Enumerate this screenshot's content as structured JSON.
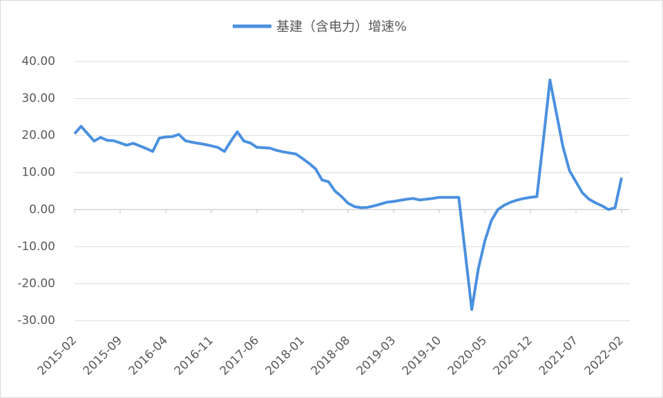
{
  "chart_data": {
    "type": "line",
    "categories": [
      "2015-02",
      null,
      null,
      null,
      null,
      null,
      null,
      "2015-09",
      null,
      null,
      null,
      null,
      null,
      null,
      "2016-04",
      null,
      null,
      null,
      null,
      null,
      null,
      "2016-11",
      null,
      null,
      null,
      null,
      null,
      null,
      "2017-06",
      null,
      null,
      null,
      null,
      null,
      null,
      "2018-01",
      null,
      null,
      null,
      null,
      null,
      null,
      "2018-08",
      null,
      null,
      null,
      null,
      null,
      null,
      "2019-03",
      null,
      null,
      null,
      null,
      null,
      null,
      "2019-10",
      null,
      null,
      null,
      null,
      null,
      null,
      "2020-05",
      null,
      null,
      null,
      null,
      null,
      null,
      "2020-12",
      null,
      null,
      null,
      null,
      null,
      null,
      "2021-07",
      null,
      null,
      null,
      null,
      null,
      null,
      "2022-02"
    ],
    "series": [
      {
        "name": "基建（含电力）增速%",
        "color": "#4a90e0",
        "values": [
          20.5,
          22.5,
          20.5,
          18.5,
          19.5,
          18.7,
          18.6,
          18.0,
          17.4,
          17.9,
          17.2,
          16.5,
          15.7,
          19.3,
          19.6,
          19.7,
          20.3,
          18.6,
          18.2,
          17.9,
          17.6,
          17.2,
          16.8,
          15.7,
          18.5,
          21.0,
          18.5,
          18.0,
          16.8,
          16.7,
          16.6,
          16.0,
          15.6,
          15.3,
          15.0,
          13.8,
          12.5,
          11.0,
          8.0,
          7.5,
          5.0,
          3.5,
          1.7,
          0.8,
          0.5,
          0.6,
          1.0,
          1.5,
          2.0,
          2.2,
          2.5,
          2.8,
          3.0,
          2.6,
          2.8,
          3.0,
          3.3,
          3.3,
          3.3,
          3.3,
          -11.8,
          -27.0,
          -16.0,
          -8.5,
          -3.0,
          0.0,
          1.2,
          2.0,
          2.6,
          3.0,
          3.3,
          3.5,
          19.0,
          35.0,
          26.0,
          17.0,
          10.5,
          7.5,
          4.5,
          2.8,
          1.8,
          1.0,
          0.0,
          0.5,
          8.6
        ]
      }
    ],
    "ylim": [
      -30,
      40
    ],
    "yticks": [
      {
        "value": -30,
        "label": "-30.00"
      },
      {
        "value": -20,
        "label": "-20.00"
      },
      {
        "value": -10,
        "label": "-10.00"
      },
      {
        "value": 0,
        "label": "0.00"
      },
      {
        "value": 10,
        "label": "10.00"
      },
      {
        "value": 20,
        "label": "20.00"
      },
      {
        "value": 30,
        "label": "30.00"
      },
      {
        "value": 40,
        "label": "40.00"
      }
    ],
    "grid": true,
    "legend": "top"
  }
}
